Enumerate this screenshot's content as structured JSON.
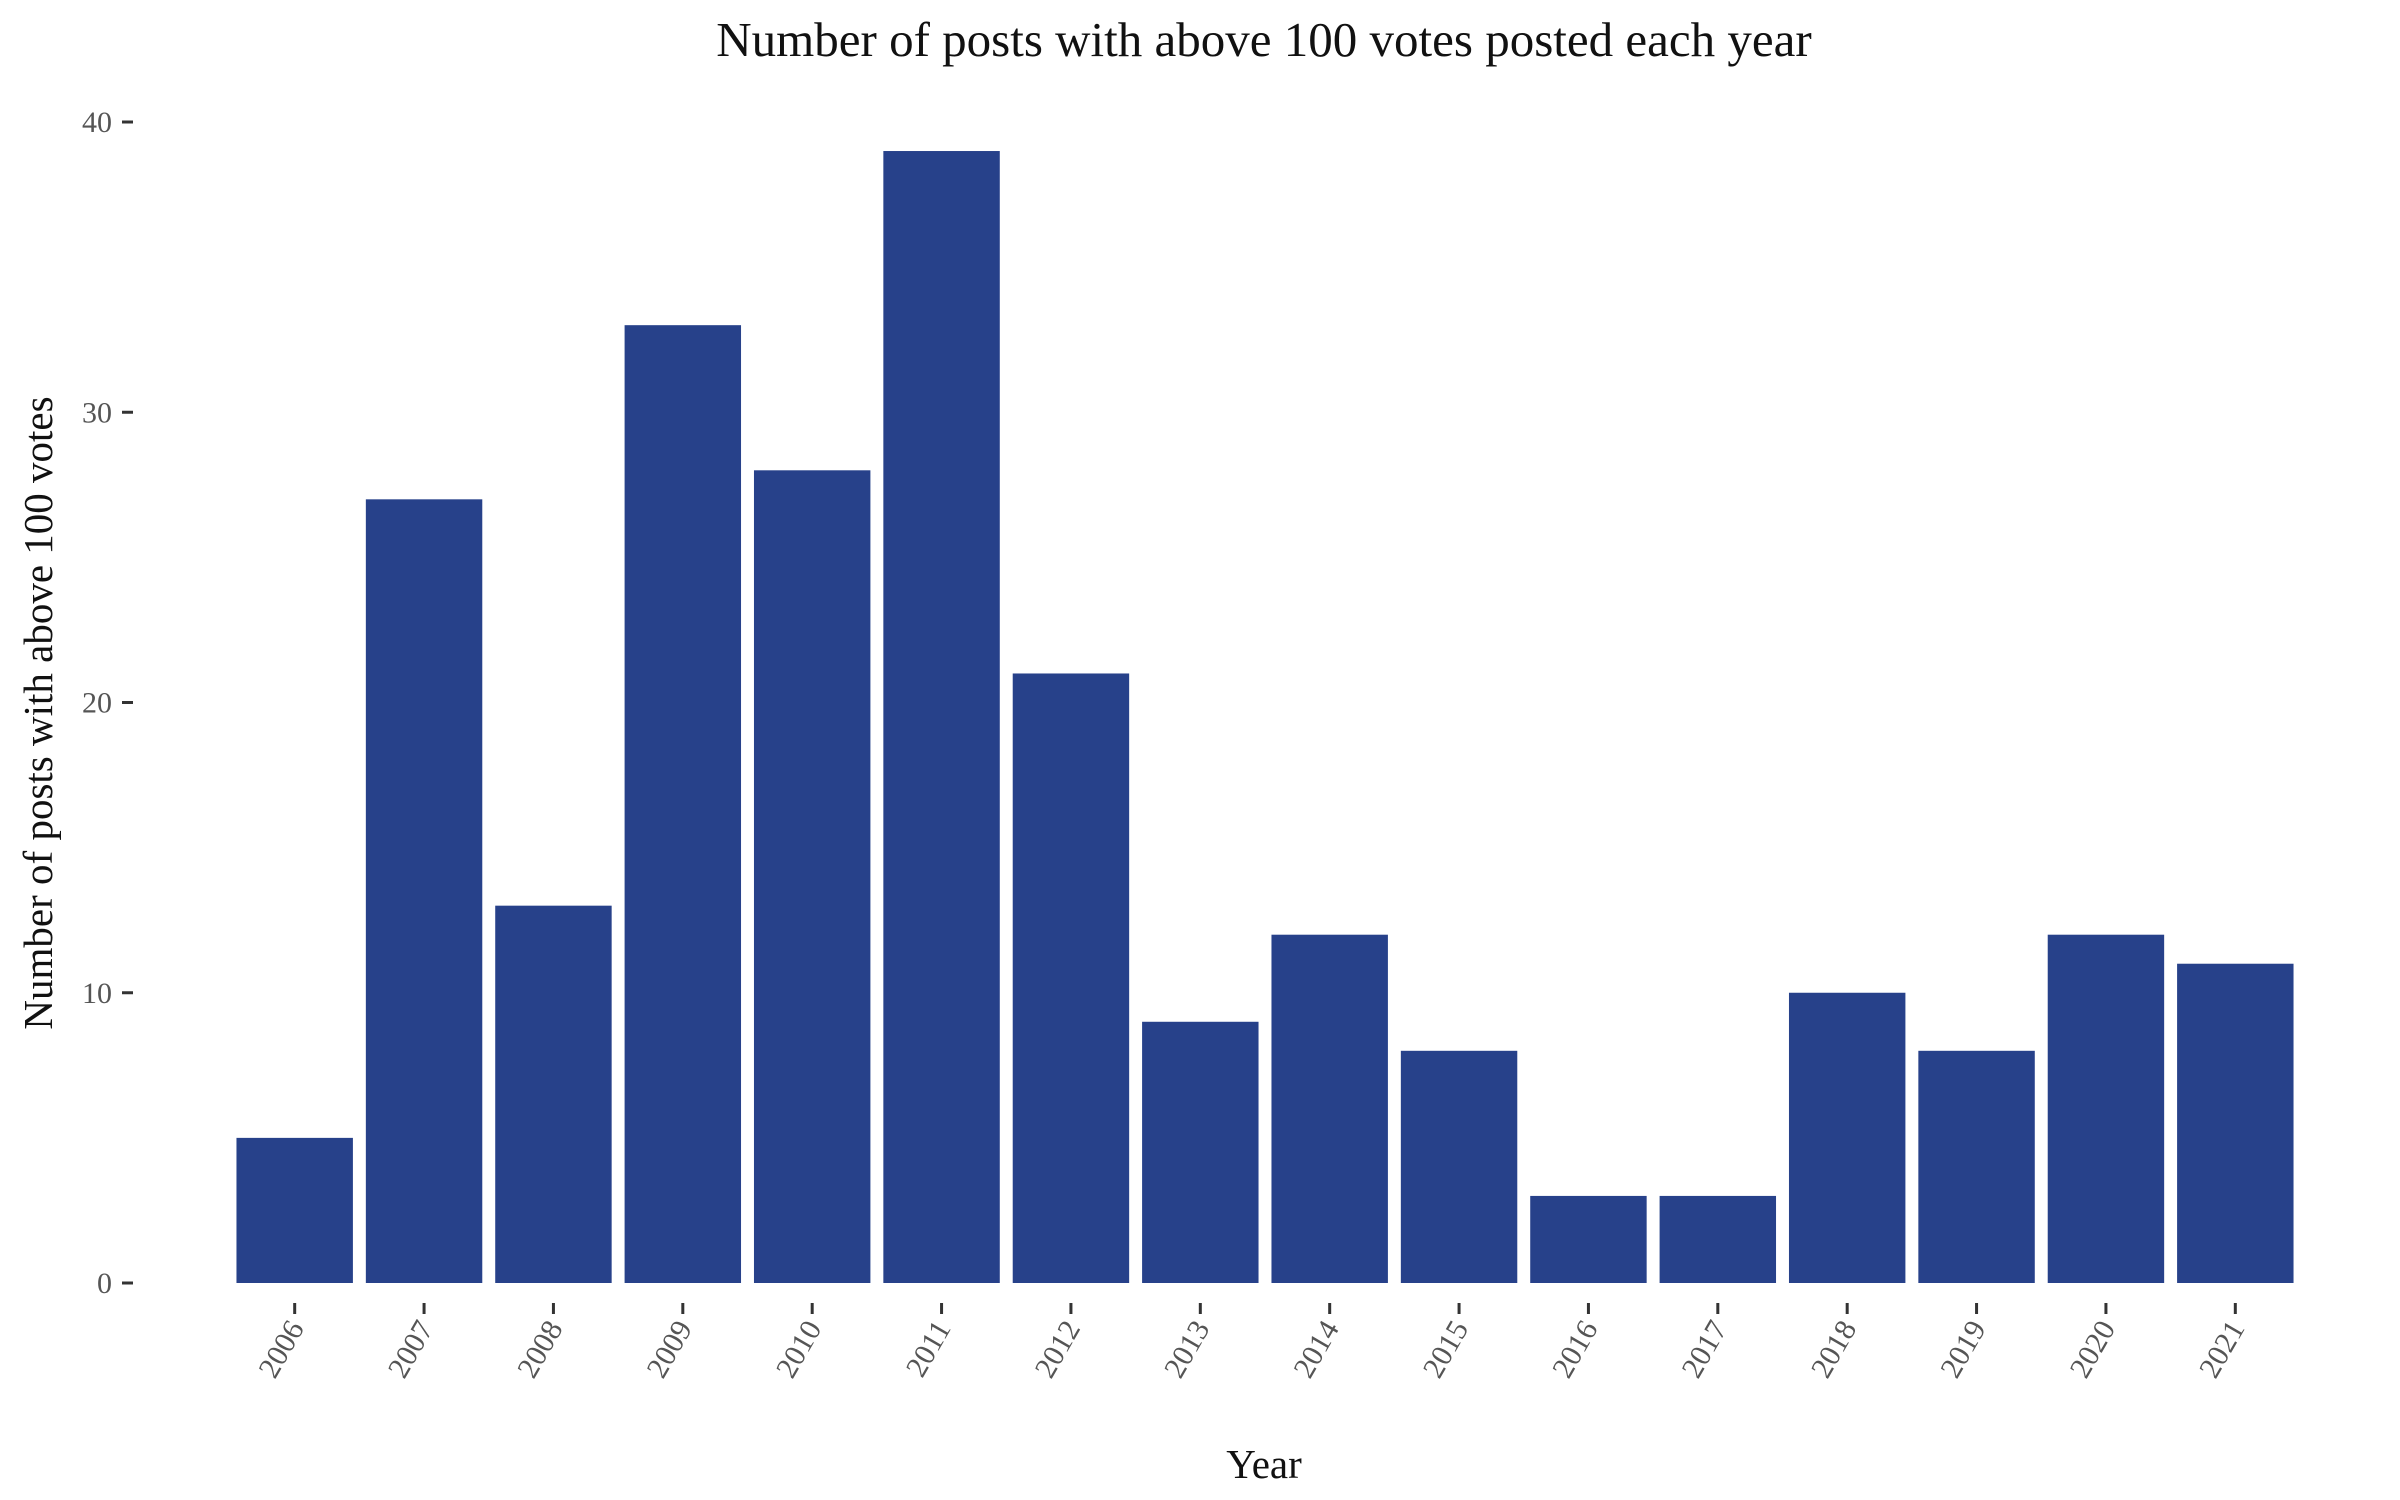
{
  "chart_data": {
    "type": "bar",
    "title": "Number of posts with above 100 votes posted each year",
    "xlabel": "Year",
    "ylabel": "Number of posts with above 100 votes",
    "categories": [
      "2006",
      "2007",
      "2008",
      "2009",
      "2010",
      "2011",
      "2012",
      "2013",
      "2014",
      "2015",
      "2016",
      "2017",
      "2018",
      "2019",
      "2020",
      "2021"
    ],
    "values": [
      5,
      27,
      13,
      33,
      28,
      39,
      21,
      9,
      12,
      8,
      3,
      3,
      10,
      8,
      12,
      11
    ],
    "ylim": [
      0,
      40
    ],
    "yticks": [
      0,
      10,
      20,
      30,
      40
    ],
    "ytick_labels": [
      "0",
      "10",
      "20",
      "30",
      "40"
    ],
    "grid": false,
    "legend": "none",
    "colors": {
      "bar": "#27418a",
      "background": "#ffffff"
    }
  }
}
